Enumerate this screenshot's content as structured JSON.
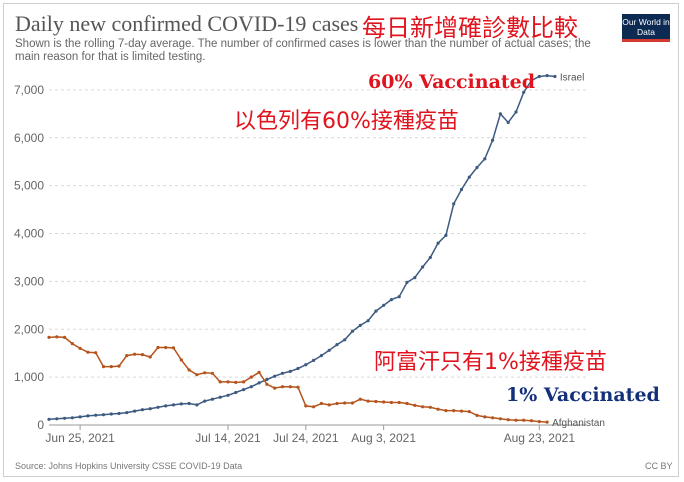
{
  "header": {
    "title": "Daily new confirmed COVID-19 cases",
    "subtitle": "Shown is the rolling 7-day average. The number of confirmed cases is lower than the number of actual cases; the main reason for that is limited testing.",
    "overlay_title": "每日新增確診數比較",
    "logo_text": "Our World in Data"
  },
  "annotations": {
    "israel_vaccinated": "60% Vaccinated",
    "israel_note": "以色列有60%接種疫苗",
    "afghanistan_note": "阿富汗只有1%接種疫苗",
    "afghanistan_vaccinated": "1% Vaccinated"
  },
  "footer": {
    "source": "Source: Johns Hopkins University CSSE COVID-19 Data",
    "license": "CC BY"
  },
  "colors": {
    "israel": "#3d5a80",
    "afghanistan": "#b5541c",
    "red_text": "#e0141e",
    "blue_text": "#14307a"
  },
  "chart_data": {
    "type": "line",
    "title": "Daily new confirmed COVID-19 cases",
    "xlabel": "",
    "ylabel": "",
    "ylim": [
      0,
      7500
    ],
    "yticks": [
      "0",
      "1,000",
      "2,000",
      "3,000",
      "4,000",
      "5,000",
      "6,000",
      "7,000"
    ],
    "ytick_values": [
      0,
      1000,
      2000,
      3000,
      4000,
      5000,
      6000,
      7000
    ],
    "xticks": [
      "Jun 25, 2021",
      "Jul 14, 2021",
      "Jul 24, 2021",
      "Aug 3, 2021",
      "Aug 23, 2021"
    ],
    "xtick_dates": [
      "2021-06-25",
      "2021-07-14",
      "2021-07-24",
      "2021-08-03",
      "2021-08-23"
    ],
    "x_range": [
      "2021-06-21",
      "2021-08-29"
    ],
    "grid": "horizontal dashed",
    "series": [
      {
        "name": "Israel",
        "start_date": "2021-06-21",
        "values": [
          120,
          130,
          140,
          150,
          170,
          190,
          205,
          215,
          230,
          240,
          260,
          290,
          320,
          340,
          370,
          400,
          420,
          440,
          450,
          420,
          500,
          540,
          580,
          620,
          680,
          740,
          800,
          880,
          950,
          1020,
          1080,
          1120,
          1180,
          1260,
          1350,
          1450,
          1560,
          1680,
          1780,
          1960,
          2080,
          2180,
          2380,
          2500,
          2620,
          2680,
          2980,
          3080,
          3300,
          3500,
          3800,
          3960,
          4620,
          4920,
          5180,
          5380,
          5560,
          5950,
          6500,
          6320,
          6540,
          6950,
          7200,
          7280,
          7300,
          7280
        ]
      },
      {
        "name": "Afghanistan",
        "start_date": "2021-06-21",
        "values": [
          1830,
          1840,
          1830,
          1700,
          1600,
          1520,
          1510,
          1220,
          1220,
          1230,
          1450,
          1480,
          1470,
          1420,
          1620,
          1620,
          1610,
          1360,
          1150,
          1050,
          1090,
          1080,
          900,
          900,
          890,
          900,
          1000,
          1100,
          850,
          770,
          800,
          800,
          790,
          400,
          380,
          450,
          420,
          450,
          460,
          460,
          540,
          500,
          490,
          480,
          470,
          470,
          450,
          410,
          380,
          370,
          330,
          300,
          300,
          290,
          280,
          200,
          170,
          150,
          130,
          110,
          100,
          100,
          90,
          70,
          60
        ]
      }
    ]
  }
}
